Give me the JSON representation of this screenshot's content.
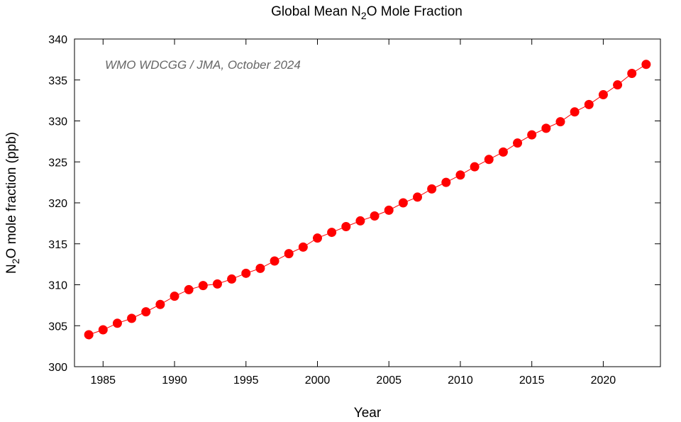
{
  "chart_data": {
    "type": "line",
    "title_main": "Global Mean N",
    "title_sub": "2",
    "title_rest": "O  Mole Fraction",
    "xlabel": "Year",
    "ylabel_main": "N",
    "ylabel_sub": "2",
    "ylabel_rest": "O mole fraction (ppb)",
    "annotation": "WMO WDCGG / JMA, October 2024",
    "xlim": [
      1983,
      2024
    ],
    "ylim": [
      300,
      340
    ],
    "xticks": [
      1985,
      1990,
      1995,
      2000,
      2005,
      2010,
      2015,
      2020
    ],
    "yticks": [
      300,
      305,
      310,
      315,
      320,
      325,
      330,
      335,
      340
    ],
    "grid": false,
    "marker_color": "#ff0000",
    "series": [
      {
        "name": "Global Mean N2O",
        "x": [
          1984,
          1985,
          1986,
          1987,
          1988,
          1989,
          1990,
          1991,
          1992,
          1993,
          1994,
          1995,
          1996,
          1997,
          1998,
          1999,
          2000,
          2001,
          2002,
          2003,
          2004,
          2005,
          2006,
          2007,
          2008,
          2009,
          2010,
          2011,
          2012,
          2013,
          2014,
          2015,
          2016,
          2017,
          2018,
          2019,
          2020,
          2021,
          2022,
          2023
        ],
        "y": [
          303.9,
          304.5,
          305.3,
          305.9,
          306.7,
          307.6,
          308.6,
          309.4,
          309.9,
          310.1,
          310.7,
          311.4,
          312.0,
          312.9,
          313.8,
          314.6,
          315.7,
          316.4,
          317.1,
          317.8,
          318.4,
          319.1,
          320.0,
          320.7,
          321.7,
          322.5,
          323.4,
          324.4,
          325.3,
          326.2,
          327.3,
          328.3,
          329.1,
          329.9,
          331.1,
          332.0,
          333.2,
          334.4,
          335.8,
          336.9
        ]
      }
    ]
  }
}
